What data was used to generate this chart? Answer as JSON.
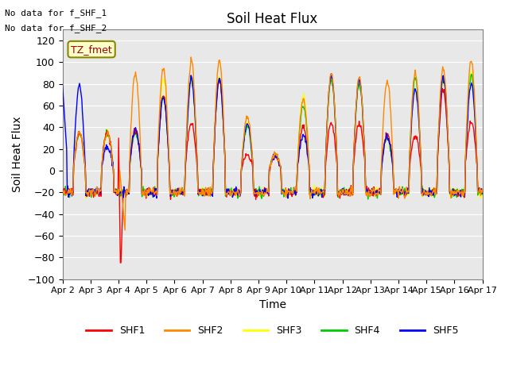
{
  "title": "Soil Heat Flux",
  "xlabel": "Time",
  "ylabel": "Soil Heat Flux",
  "ylim": [
    -100,
    130
  ],
  "yticks": [
    -100,
    -80,
    -60,
    -40,
    -20,
    0,
    20,
    40,
    60,
    80,
    100,
    120
  ],
  "note_line1": "No data for f_SHF_1",
  "note_line2": "No data for f_SHF_2",
  "legend_label": "TZ_fmet",
  "background_color": "#e8e8e8",
  "series_colors": {
    "SHF1": "#ff0000",
    "SHF2": "#ff8800",
    "SHF3": "#ffff00",
    "SHF4": "#00cc00",
    "SHF5": "#0000ff"
  },
  "xticklabels": [
    "Apr 2",
    "Apr 3",
    "Apr 4",
    "Apr 5",
    "Apr 6",
    "Apr 7",
    "Apr 8",
    "Apr 9",
    "Apr 10",
    "Apr 11",
    "Apr 12",
    "Apr 13",
    "Apr 14",
    "Apr 15",
    "Apr 16",
    "Apr 17"
  ],
  "num_days": 15,
  "points_per_day": 48,
  "shf1_amp": [
    35,
    35,
    38,
    70,
    44,
    85,
    15,
    13,
    40,
    44,
    44,
    33,
    32,
    74,
    45
  ],
  "shf2_amp": [
    35,
    35,
    90,
    95,
    102,
    102,
    50,
    15,
    65,
    90,
    85,
    83,
    90,
    95,
    102
  ],
  "shf3_amp": [
    35,
    35,
    35,
    85,
    85,
    85,
    45,
    15,
    70,
    87,
    83,
    32,
    85,
    85,
    90
  ],
  "shf4_amp": [
    35,
    35,
    35,
    68,
    85,
    85,
    40,
    15,
    60,
    85,
    80,
    30,
    85,
    85,
    88
  ],
  "shf5_amp": [
    78,
    22,
    38,
    68,
    85,
    85,
    43,
    13,
    32,
    88,
    83,
    32,
    75,
    85,
    80
  ]
}
